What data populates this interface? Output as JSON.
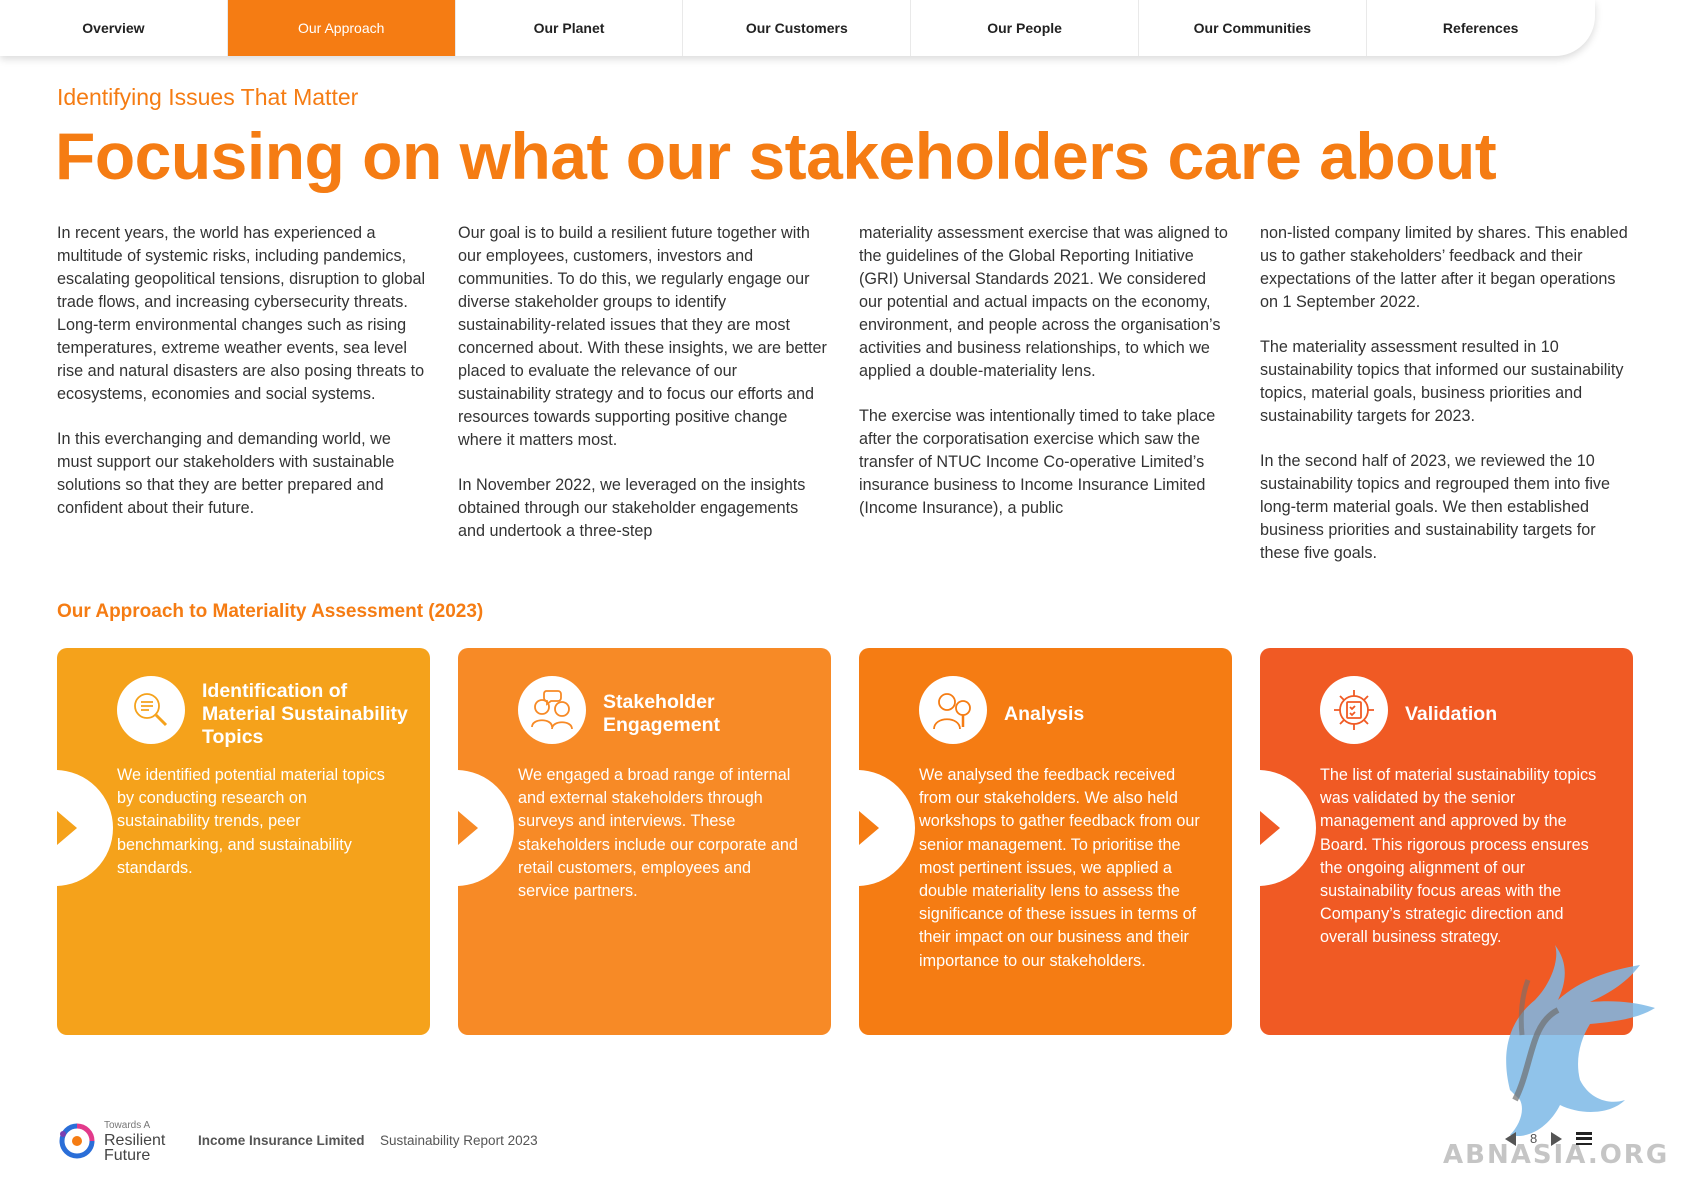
{
  "nav": {
    "items": [
      {
        "label": "Overview",
        "active": false
      },
      {
        "label": "Our Approach",
        "active": true
      },
      {
        "label": "Our Planet",
        "active": false
      },
      {
        "label": "Our Customers",
        "active": false
      },
      {
        "label": "Our People",
        "active": false
      },
      {
        "label": "Our Communities",
        "active": false
      },
      {
        "label": "References",
        "active": false
      }
    ]
  },
  "page": {
    "kicker": "Identifying Issues That Matter",
    "title": "Focusing on what our stakeholders care about"
  },
  "columns": [
    {
      "paragraphs": [
        "In recent years, the world has experienced a multitude of systemic risks, including pandemics, escalating geopolitical tensions, disruption to global trade flows, and increasing cybersecurity threats. Long-term environmental changes such as rising temperatures, extreme weather events, sea level rise and natural disasters are also posing threats to ecosystems, economies and social systems.",
        "In this everchanging and demanding world, we must support our stakeholders with sustainable solutions so that they are better prepared and confident about their future."
      ]
    },
    {
      "paragraphs": [
        "Our goal is to build a resilient future together with our employees, customers, investors and communities. To do this, we regularly engage our diverse stakeholder groups to identify sustainability-related issues that they are most concerned about. With these insights, we are better placed to evaluate the relevance of our sustainability strategy and to focus our efforts and resources towards supporting positive change where it matters most.",
        "In November 2022, we leveraged on the insights obtained through our stakeholder engagements and undertook a three-step"
      ]
    },
    {
      "paragraphs": [
        "materiality assessment exercise that was aligned to the guidelines of the Global Reporting Initiative (GRI) Universal Standards 2021. We considered our potential and actual impacts on the economy, environment, and people across the organisation’s activities and business relationships, to which we applied a double-materiality lens.",
        "The exercise was intentionally timed to take place after the corporatisation exercise which saw the transfer of NTUC Income Co-operative Limited’s insurance business to Income Insurance Limited (Income Insurance), a public"
      ]
    },
    {
      "paragraphs": [
        "non-listed company limited by shares. This enabled us to gather stakeholders’ feedback and their expectations of the latter after it began operations on 1 September 2022.",
        "The materiality assessment resulted in 10 sustainability topics that informed our sustainability topics, material goals, business priorities and sustainability targets for 2023.",
        "In the second half of 2023, we reviewed the 10 sustainability topics and regrouped them into five long-term material goals. We then established business priorities and sustainability targets for these five goals."
      ]
    }
  ],
  "approach": {
    "title": "Our Approach to Materiality Assessment (2023)",
    "cards": [
      {
        "title": "Identification of Material Sustainability Topics",
        "icon": "magnifier-document-icon",
        "color": "#f5a21b",
        "body": "We identified potential material topics by conducting research on sustainability trends, peer benchmarking, and sustainability standards."
      },
      {
        "title": "Stakeholder Engagement",
        "icon": "people-conversation-icon",
        "color": "#f78a26",
        "body": "We engaged a broad range of internal and external stakeholders through surveys and interviews. These stakeholders include our corporate and retail customers, employees and service partners."
      },
      {
        "title": "Analysis",
        "icon": "person-magnifier-icon",
        "color": "#f57c13",
        "body": "We analysed the feedback received from our stakeholders. We also held workshops to gather feedback from our senior management. To prioritise the most pertinent issues, we applied a double materiality lens to assess the significance of these issues in terms of their impact on our business and their importance to our stakeholders."
      },
      {
        "title": "Validation",
        "icon": "gear-checklist-icon",
        "color": "#f05a24",
        "body": "The list of material sustainability topics was validated by the senior management and approved by the Board. This rigorous process ensures the ongoing alignment of our sustainability focus areas with the Company’s strategic direction and overall business strategy."
      }
    ]
  },
  "footer": {
    "logo_small": "Towards A",
    "logo_line1": "Resilient",
    "logo_line2": "Future",
    "company": "Income Insurance Limited",
    "report": "Sustainability Report 2023",
    "page_number": "8"
  },
  "watermark": {
    "text": "ABNASIA.ORG"
  },
  "colors": {
    "brand_orange": "#f57c13"
  }
}
